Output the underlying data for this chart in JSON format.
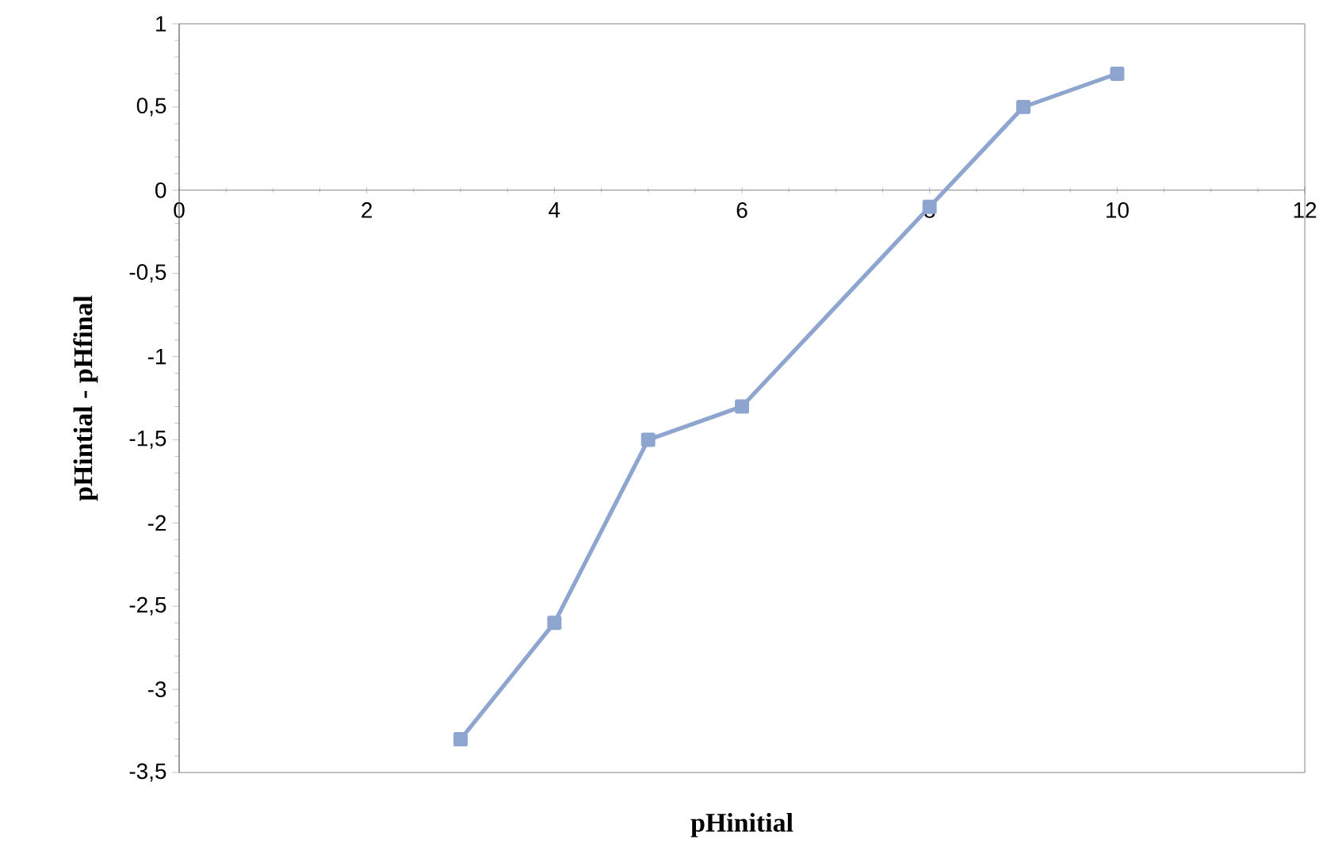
{
  "chart_data": {
    "type": "line",
    "xlabel": "pHinitial",
    "ylabel": "pHintial - pHfinal",
    "x": [
      3,
      4,
      5,
      6,
      8,
      9,
      10
    ],
    "series": [
      {
        "color": "#8ea5cf",
        "values": [
          -3.3,
          -2.6,
          -1.5,
          -1.3,
          -0.1,
          0.5,
          0.7
        ]
      }
    ],
    "xlim": [
      0,
      12
    ],
    "xticks": [
      0,
      2,
      4,
      6,
      8,
      10,
      12
    ],
    "ylim": [
      -3.5,
      1
    ],
    "yticks": [
      1,
      {
        "value": 0.5,
        "label": "0,5"
      },
      0,
      {
        "value": -0.5,
        "label": "-0,5"
      },
      -1,
      {
        "value": -1.5,
        "label": "-1,5"
      },
      -2,
      {
        "value": -2.5,
        "label": "-2,5"
      },
      -3,
      {
        "value": -3.5,
        "label": "-3,5"
      }
    ],
    "marker": "square",
    "line_style": "solid",
    "grid": false
  }
}
